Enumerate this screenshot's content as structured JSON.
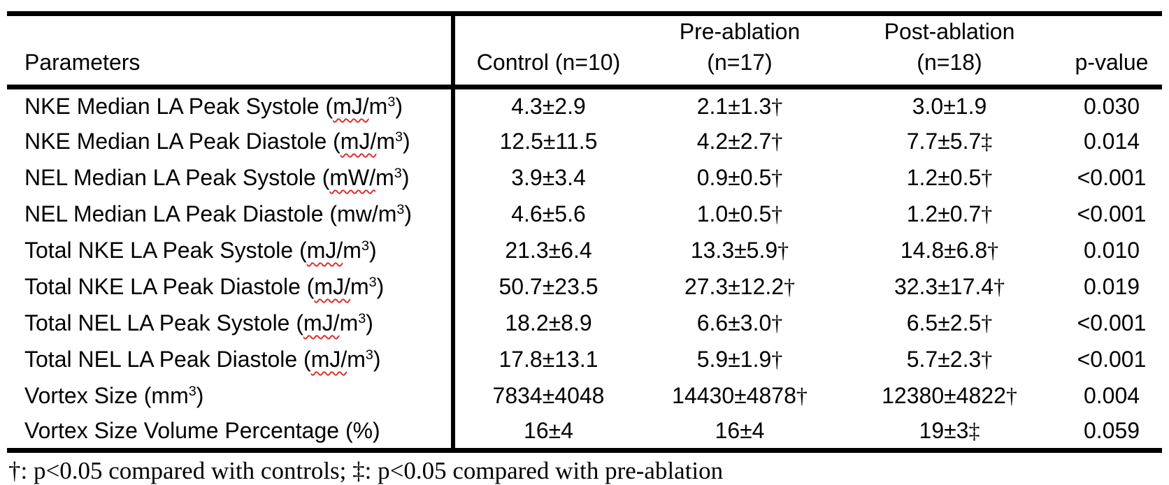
{
  "table": {
    "header": {
      "parameters": "Parameters",
      "control": "Control (n=10)",
      "pre_ablation_line1": "Pre-ablation",
      "pre_ablation_line2": "(n=17)",
      "post_ablation_line1": "Post-ablation",
      "post_ablation_line2": "(n=18)",
      "p_value": "p-value"
    },
    "rows": [
      {
        "label_pre": "NKE Median LA Peak Systole (",
        "label_squiggle": "mJ/",
        "label_mid": "m",
        "label_sup": "3",
        "label_post": ")",
        "control": "4.3±2.9",
        "control_marker": "",
        "pre": "2.1±1.3",
        "pre_marker": "†",
        "post": "3.0±1.9",
        "post_marker": "",
        "p": "0.030"
      },
      {
        "label_pre": "NKE Median LA Peak Diastole (",
        "label_squiggle": "mJ/",
        "label_mid": "m",
        "label_sup": "3",
        "label_post": ")",
        "control": "12.5±11.5",
        "control_marker": "",
        "pre": "4.2±2.7",
        "pre_marker": "†",
        "post": "7.7±5.7",
        "post_marker": "‡",
        "p": "0.014"
      },
      {
        "label_pre": "NEL Median LA Peak Systole (",
        "label_squiggle": "mW/",
        "label_mid": "m",
        "label_sup": "3",
        "label_post": ")",
        "control": "3.9±3.4",
        "control_marker": "",
        "pre": "0.9±0.5",
        "pre_marker": "†",
        "post": "1.2±0.5",
        "post_marker": "†",
        "p": "<0.001"
      },
      {
        "label_pre": "NEL Median LA Peak Diastole (",
        "label_squiggle": "",
        "label_mid": "mw/m",
        "label_sup": "3",
        "label_post": ")",
        "control": "4.6±5.6",
        "control_marker": "",
        "pre": "1.0±0.5",
        "pre_marker": "†",
        "post": "1.2±0.7",
        "post_marker": "†",
        "p": "<0.001"
      },
      {
        "label_pre": "Total NKE LA Peak Systole (",
        "label_squiggle": "mJ/",
        "label_mid": "m",
        "label_sup": "3",
        "label_post": ")",
        "control": "21.3±6.4",
        "control_marker": "",
        "pre": "13.3±5.9",
        "pre_marker": "†",
        "post": "14.8±6.8",
        "post_marker": "†",
        "p": "0.010"
      },
      {
        "label_pre": "Total NKE LA Peak Diastole (",
        "label_squiggle": "mJ/",
        "label_mid": "m",
        "label_sup": "3",
        "label_post": ")",
        "control": "50.7±23.5",
        "control_marker": "",
        "pre": "27.3±12.2",
        "pre_marker": "†",
        "post": "32.3±17.4",
        "post_marker": "†",
        "p": "0.019"
      },
      {
        "label_pre": "Total NEL LA Peak Systole (",
        "label_squiggle": "mJ/",
        "label_mid": "m",
        "label_sup": "3",
        "label_post": ")",
        "control": "18.2±8.9",
        "control_marker": "",
        "pre": "6.6±3.0",
        "pre_marker": "†",
        "post": "6.5±2.5",
        "post_marker": "†",
        "p": "<0.001"
      },
      {
        "label_pre": "Total NEL LA Peak Diastole (",
        "label_squiggle": "mJ/",
        "label_mid": "m",
        "label_sup": "3",
        "label_post": ")",
        "control": "17.8±13.1",
        "control_marker": "",
        "pre": "5.9±1.9",
        "pre_marker": "†",
        "post": "5.7±2.3",
        "post_marker": "†",
        "p": "<0.001"
      },
      {
        "label_pre": "Vortex Size (",
        "label_squiggle": "",
        "label_mid": "mm",
        "label_sup": "3",
        "label_post": ")",
        "control": "7834±4048",
        "control_marker": "",
        "pre": "14430±4878",
        "pre_marker": "†",
        "post": "12380±4822",
        "post_marker": "†",
        "p": "0.004"
      },
      {
        "label_pre": "Vortex Size Volume Percentage (%)",
        "label_squiggle": "",
        "label_mid": "",
        "label_sup": "",
        "label_post": "",
        "control": "16±4",
        "control_marker": "",
        "pre": "16±4",
        "pre_marker": "",
        "post": "19±3",
        "post_marker": "‡",
        "p": "0.059"
      }
    ]
  },
  "footnote": "†: p<0.05 compared with controls; ‡: p<0.05 compared with pre-ablation",
  "colors": {
    "text": "#000000",
    "squiggle_red": "#e03030",
    "background": "#ffffff"
  }
}
